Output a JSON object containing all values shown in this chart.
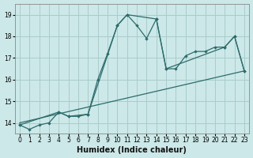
{
  "title": "",
  "xlabel": "Humidex (Indice chaleur)",
  "bg_color": "#cce8e8",
  "grid_color": "#aacccc",
  "line_color": "#2d6b6b",
  "xlim": [
    -0.5,
    23.5
  ],
  "ylim": [
    13.5,
    19.5
  ],
  "xticks": [
    0,
    1,
    2,
    3,
    4,
    5,
    6,
    7,
    8,
    9,
    10,
    11,
    12,
    13,
    14,
    15,
    16,
    17,
    18,
    19,
    20,
    21,
    22,
    23
  ],
  "yticks": [
    14,
    15,
    16,
    17,
    18,
    19
  ],
  "line1_x": [
    0,
    1,
    2,
    3,
    4,
    5,
    6,
    7,
    8,
    9,
    10,
    11,
    12,
    13,
    14,
    15,
    16,
    17,
    18,
    19,
    20,
    21,
    22,
    23
  ],
  "line1_y": [
    13.9,
    13.7,
    13.9,
    14.0,
    14.5,
    14.3,
    14.3,
    14.4,
    16.0,
    17.2,
    18.5,
    19.0,
    18.5,
    17.9,
    18.8,
    16.5,
    16.5,
    17.1,
    17.3,
    17.3,
    17.5,
    17.5,
    18.0,
    16.4
  ],
  "line2_x": [
    0,
    23
  ],
  "line2_y": [
    14.0,
    16.4
  ],
  "line3_x": [
    0,
    4,
    5,
    7,
    10,
    11,
    14,
    15,
    21,
    22,
    23
  ],
  "line3_y": [
    13.9,
    14.5,
    14.3,
    14.4,
    18.5,
    19.0,
    18.8,
    16.5,
    17.5,
    18.0,
    16.4
  ],
  "xlabel_fontsize": 7,
  "tick_fontsize": 5.5,
  "linewidth": 0.9,
  "markersize": 2.2
}
